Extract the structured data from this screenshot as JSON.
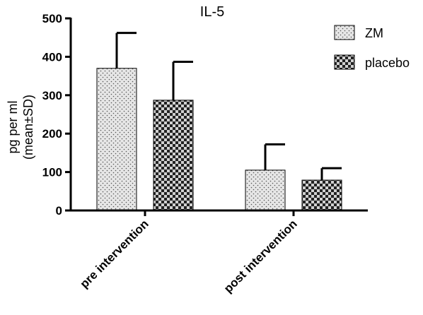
{
  "chart_data": {
    "type": "bar",
    "title": "IL-5",
    "ylabel": [
      "pg per ml",
      "(mean±SD)"
    ],
    "xlabel": "",
    "categories": [
      "pre intervention",
      "post intervention"
    ],
    "ylim": [
      0,
      500
    ],
    "yticks": [
      0,
      100,
      200,
      300,
      400,
      500
    ],
    "error_bars": "SD",
    "legend_position": "top-right",
    "grid": false,
    "series": [
      {
        "name": "ZM",
        "values": [
          370,
          105
        ],
        "errors": [
          92,
          67
        ],
        "pattern": "dots",
        "color": "#dcdcdc"
      },
      {
        "name": "placebo",
        "values": [
          287,
          79
        ],
        "errors": [
          100,
          31
        ],
        "pattern": "checkerboard",
        "color": "#333333"
      }
    ]
  }
}
